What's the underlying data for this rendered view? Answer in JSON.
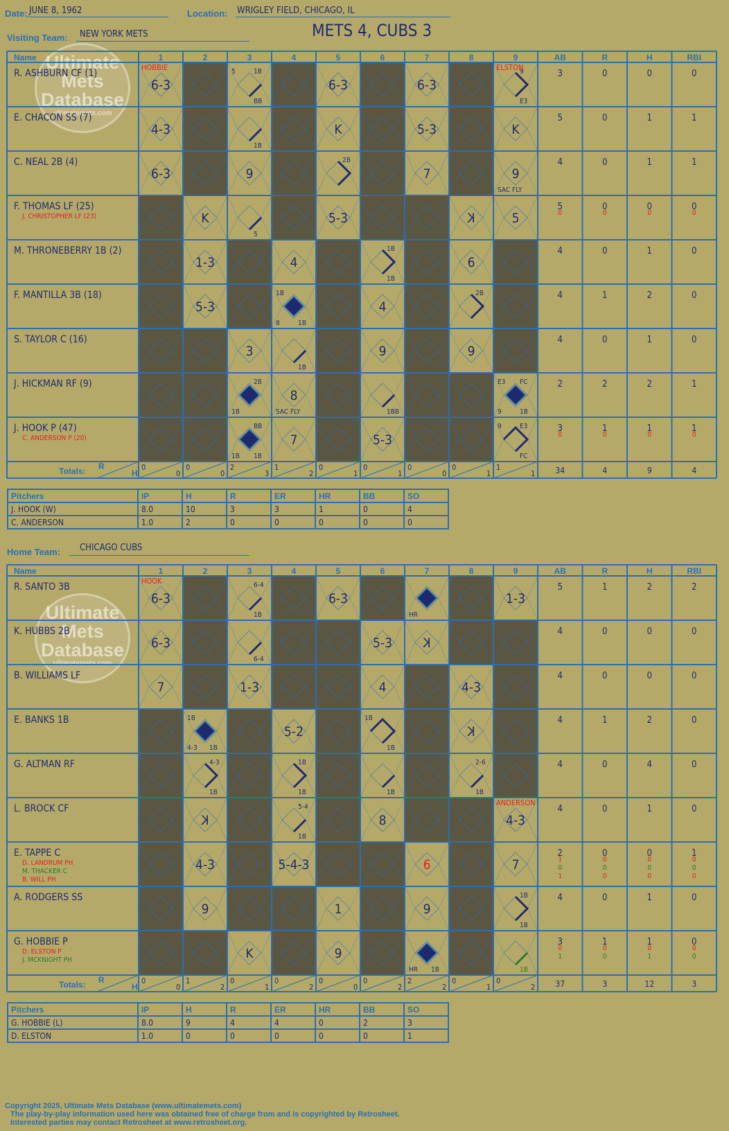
{
  "header": {
    "date_label": "Date:",
    "date": "JUNE 8, 1962",
    "location_label": "Location:",
    "location": "WRIGLEY FIELD, CHICAGO, IL",
    "visiting_label": "Visiting Team:",
    "visiting_team": "NEW YORK METS",
    "home_label": "Home Team:",
    "home_team": "CHICAGO CUBS",
    "final_score": "METS 4, CUBS 3"
  },
  "watermark": {
    "line1": "Ultimate",
    "line2": "Mets",
    "line3": "Database",
    "url": "ultimatemets.com"
  },
  "grid_labels": {
    "name": "Name",
    "innings": [
      "1",
      "2",
      "3",
      "4",
      "5",
      "6",
      "7",
      "8",
      "9"
    ],
    "stats": [
      "AB",
      "R",
      "H",
      "RBI"
    ],
    "totals": "Totals:",
    "totals_r": "R",
    "totals_h": "H"
  },
  "pitch_headers": [
    "Pitchers",
    "IP",
    "H",
    "R",
    "ER",
    "HR",
    "BB",
    "SO"
  ],
  "colors": {
    "blue": "#2a6fb0",
    "ink": "#1e2a6e",
    "red": "#e02020",
    "green": "#2a7a2a",
    "dark": "#5b5642",
    "paper": "#b5a96a"
  },
  "visitors": {
    "dark_cells": [
      [
        0,
        1,
        0,
        1,
        0,
        1,
        0,
        1,
        0
      ],
      [
        0,
        1,
        0,
        1,
        0,
        1,
        0,
        1,
        0
      ],
      [
        0,
        1,
        0,
        1,
        0,
        1,
        0,
        1,
        0
      ],
      [
        1,
        0,
        0,
        1,
        0,
        1,
        1,
        0,
        0
      ],
      [
        1,
        0,
        1,
        0,
        1,
        0,
        1,
        0,
        1
      ],
      [
        1,
        0,
        1,
        0,
        1,
        0,
        1,
        0,
        1
      ],
      [
        1,
        1,
        0,
        0,
        1,
        0,
        1,
        0,
        1
      ],
      [
        1,
        1,
        0,
        0,
        1,
        0,
        1,
        1,
        0
      ],
      [
        1,
        1,
        0,
        0,
        1,
        0,
        1,
        1,
        0
      ]
    ],
    "pitcher_notes": [
      {
        "row": 0,
        "col": 0,
        "text": "HOBBIE"
      },
      {
        "row": 0,
        "col": 8,
        "text": "ELSTON"
      }
    ],
    "players": [
      {
        "name": "R. ASHBURN CF (1)",
        "subs": [],
        "stats": [
          {
            "ab": "3",
            "r": "0",
            "h": "0",
            "rbi": "0"
          }
        ],
        "cells": [
          {
            "inn": 0,
            "center": "6-3"
          },
          {
            "inn": 2,
            "tl": "5",
            "tr": "1B",
            "br": "BB",
            "d": "1"
          },
          {
            "inn": 4,
            "center": "6-3"
          },
          {
            "inn": 6,
            "center": "6-3"
          },
          {
            "inn": 8,
            "tr": "9",
            "br": "E3",
            "d": "2"
          }
        ]
      },
      {
        "name": "E. CHACON SS (7)",
        "subs": [],
        "stats": [
          {
            "ab": "5",
            "r": "0",
            "h": "1",
            "rbi": "1"
          }
        ],
        "cells": [
          {
            "inn": 0,
            "center": "4-3"
          },
          {
            "inn": 2,
            "br": "1B",
            "d": "1"
          },
          {
            "inn": 4,
            "center": "K"
          },
          {
            "inn": 6,
            "center": "5-3"
          },
          {
            "inn": 8,
            "center": "K"
          }
        ]
      },
      {
        "name": "C. NEAL 2B (4)",
        "subs": [],
        "stats": [
          {
            "ab": "4",
            "r": "0",
            "h": "1",
            "rbi": "1"
          }
        ],
        "cells": [
          {
            "inn": 0,
            "center": "6-3"
          },
          {
            "inn": 2,
            "center": "9"
          },
          {
            "inn": 4,
            "tr": "2B",
            "d": "2"
          },
          {
            "inn": 6,
            "center": "7"
          },
          {
            "inn": 8,
            "center": "9",
            "bl": "SAC FLY"
          }
        ]
      },
      {
        "name": "F. THOMAS LF (25)",
        "subs": [
          "J. CHRISTOPHER LF (23)"
        ],
        "stats": [
          {
            "ab": "5",
            "r": "0",
            "h": "0",
            "rbi": "0"
          },
          {
            "ab": "0",
            "r": "0",
            "h": "0",
            "rbi": "0"
          }
        ],
        "cells": [
          {
            "inn": 1,
            "center": "K"
          },
          {
            "inn": 2,
            "br": "5",
            "d": "1"
          },
          {
            "inn": 4,
            "center": "5-3"
          },
          {
            "inn": 7,
            "center": "K",
            "flip": true
          },
          {
            "inn": 8,
            "center": "5"
          }
        ]
      },
      {
        "name": "M. THRONEBERRY 1B (2)",
        "subs": [],
        "stats": [
          {
            "ab": "4",
            "r": "0",
            "h": "1",
            "rbi": "0"
          }
        ],
        "cells": [
          {
            "inn": 1,
            "center": "1-3"
          },
          {
            "inn": 3,
            "center": "4"
          },
          {
            "inn": 5,
            "tr": "1B",
            "br": "1B",
            "d": "2"
          },
          {
            "inn": 7,
            "center": "6"
          }
        ]
      },
      {
        "name": "F. MANTILLA 3B (18)",
        "subs": [],
        "stats": [
          {
            "ab": "4",
            "r": "1",
            "h": "2",
            "rbi": "0"
          }
        ],
        "cells": [
          {
            "inn": 1,
            "center": "5-3"
          },
          {
            "inn": 3,
            "tl": "1B",
            "bl": "8",
            "br": "1B",
            "d": "4"
          },
          {
            "inn": 5,
            "center": "4"
          },
          {
            "inn": 7,
            "tr": "2B",
            "d": "2"
          }
        ]
      },
      {
        "name": "S. TAYLOR C (16)",
        "subs": [],
        "stats": [
          {
            "ab": "4",
            "r": "0",
            "h": "1",
            "rbi": "0"
          }
        ],
        "cells": [
          {
            "inn": 2,
            "center": "3"
          },
          {
            "inn": 3,
            "br": "1B",
            "d": "1"
          },
          {
            "inn": 5,
            "center": "9"
          },
          {
            "inn": 7,
            "center": "9"
          }
        ]
      },
      {
        "name": "J. HICKMAN RF (9)",
        "subs": [],
        "stats": [
          {
            "ab": "2",
            "r": "2",
            "h": "2",
            "rbi": "1"
          }
        ],
        "cells": [
          {
            "inn": 2,
            "tr": "2B",
            "bl": "1B",
            "d": "4"
          },
          {
            "inn": 3,
            "center": "8",
            "bl": "SAC FLY"
          },
          {
            "inn": 5,
            "br": "1BB",
            "d": "1"
          },
          {
            "inn": 8,
            "tl": "E3",
            "tr": "FC",
            "bl": "9",
            "br": "1B",
            "d": "4"
          }
        ]
      },
      {
        "name": "J. HOOK P (47)",
        "subs": [
          "C. ANDERSON P (20)"
        ],
        "stats": [
          {
            "ab": "3",
            "r": "1",
            "h": "1",
            "rbi": "1"
          },
          {
            "ab": "0",
            "r": "0",
            "h": "0",
            "rbi": "0"
          }
        ],
        "cells": [
          {
            "inn": 2,
            "tr": "BB",
            "bl": "1B",
            "br": "1B",
            "d": "4"
          },
          {
            "inn": 3,
            "center": "7"
          },
          {
            "inn": 5,
            "center": "5-3"
          },
          {
            "inn": 8,
            "tl": "9",
            "tr": "E3",
            "br": "FC",
            "d": "3"
          }
        ]
      }
    ],
    "totals": [
      [
        "0",
        "0"
      ],
      [
        "0",
        "0"
      ],
      [
        "2",
        "3"
      ],
      [
        "1",
        "2"
      ],
      [
        "0",
        "1"
      ],
      [
        "0",
        "1"
      ],
      [
        "0",
        "0"
      ],
      [
        "0",
        "1"
      ],
      [
        "1",
        "1"
      ]
    ],
    "totals_stats": {
      "ab": "34",
      "r": "4",
      "h": "9",
      "rbi": "4"
    },
    "pitchers": [
      [
        "J. HOOK (W)",
        "8.0",
        "10",
        "3",
        "3",
        "1",
        "0",
        "4"
      ],
      [
        "C. ANDERSON",
        "1.0",
        "2",
        "0",
        "0",
        "0",
        "0",
        "0"
      ]
    ]
  },
  "home": {
    "dark_cells": [
      [
        0,
        1,
        0,
        1,
        0,
        1,
        0,
        1,
        0
      ],
      [
        0,
        1,
        0,
        1,
        1,
        0,
        0,
        1,
        1
      ],
      [
        0,
        1,
        0,
        1,
        1,
        0,
        1,
        0,
        1
      ],
      [
        1,
        0,
        1,
        0,
        1,
        0,
        1,
        0,
        1
      ],
      [
        1,
        0,
        1,
        0,
        1,
        0,
        1,
        0,
        1
      ],
      [
        1,
        0,
        1,
        0,
        1,
        0,
        1,
        1,
        0
      ],
      [
        1,
        0,
        1,
        0,
        1,
        1,
        0,
        1,
        0
      ],
      [
        1,
        0,
        1,
        1,
        0,
        1,
        0,
        1,
        0
      ],
      [
        1,
        1,
        0,
        1,
        0,
        1,
        0,
        1,
        0
      ]
    ],
    "pitcher_notes": [
      {
        "row": 0,
        "col": 0,
        "text": "HOOK"
      },
      {
        "row": 5,
        "col": 8,
        "text": "ANDERSON"
      }
    ],
    "players": [
      {
        "name": "R. SANTO 3B",
        "subs": [],
        "stats": [
          {
            "ab": "5",
            "r": "1",
            "h": "2",
            "rbi": "2"
          }
        ],
        "cells": [
          {
            "inn": 0,
            "center": "6-3"
          },
          {
            "inn": 2,
            "tr": "6-4",
            "br": "1B",
            "d": "1"
          },
          {
            "inn": 4,
            "center": "6-3"
          },
          {
            "inn": 6,
            "bl": "HR",
            "d": "4"
          },
          {
            "inn": 8,
            "center": "1-3"
          }
        ]
      },
      {
        "name": "K. HUBBS 2B",
        "subs": [],
        "stats": [
          {
            "ab": "4",
            "r": "0",
            "h": "0",
            "rbi": "0"
          }
        ],
        "cells": [
          {
            "inn": 0,
            "center": "6-3"
          },
          {
            "inn": 2,
            "br": "6-4",
            "d": "1"
          },
          {
            "inn": 5,
            "center": "5-3"
          },
          {
            "inn": 6,
            "center": "K",
            "flip": true
          }
        ]
      },
      {
        "name": "B. WILLIAMS LF",
        "subs": [],
        "stats": [
          {
            "ab": "4",
            "r": "0",
            "h": "0",
            "rbi": "0"
          }
        ],
        "cells": [
          {
            "inn": 0,
            "center": "7"
          },
          {
            "inn": 2,
            "center": "1-3"
          },
          {
            "inn": 5,
            "center": "4"
          },
          {
            "inn": 7,
            "center": "4-3"
          }
        ]
      },
      {
        "name": "E. BANKS 1B",
        "subs": [],
        "stats": [
          {
            "ab": "4",
            "r": "1",
            "h": "2",
            "rbi": "0"
          }
        ],
        "cells": [
          {
            "inn": 1,
            "tl": "1B",
            "bl": "4-3",
            "br": "1B",
            "d": "4"
          },
          {
            "inn": 3,
            "center": "5-2"
          },
          {
            "inn": 5,
            "tl": "1B",
            "br": "1B",
            "d": "3"
          },
          {
            "inn": 7,
            "center": "K",
            "flip": true
          }
        ]
      },
      {
        "name": "G. ALTMAN RF",
        "subs": [],
        "stats": [
          {
            "ab": "4",
            "r": "0",
            "h": "4",
            "rbi": "0"
          }
        ],
        "cells": [
          {
            "inn": 1,
            "tr": "4-3",
            "br": "1B",
            "d": "2"
          },
          {
            "inn": 3,
            "tr": "1B",
            "br": "1B",
            "d": "2"
          },
          {
            "inn": 5,
            "br": "1B",
            "d": "1"
          },
          {
            "inn": 7,
            "tr": "2-6",
            "br": "1B",
            "d": "1"
          }
        ]
      },
      {
        "name": "L. BROCK CF",
        "subs": [],
        "stats": [
          {
            "ab": "4",
            "r": "0",
            "h": "1",
            "rbi": "0"
          }
        ],
        "cells": [
          {
            "inn": 1,
            "center": "K",
            "flip": true
          },
          {
            "inn": 3,
            "tr": "5-4",
            "br": "1B",
            "d": "1"
          },
          {
            "inn": 5,
            "center": "8"
          },
          {
            "inn": 8,
            "center": "4-3"
          }
        ]
      },
      {
        "name": "E. TAPPE C",
        "subs": [
          "D. LANDRUM PH",
          "M. THACKER C",
          "B. WILL PH"
        ],
        "stats": [
          {
            "ab": "2",
            "r": "0",
            "h": "0",
            "rbi": "1"
          },
          {
            "ab": "1",
            "r": "0",
            "h": "0",
            "rbi": "0"
          },
          {
            "ab": "0",
            "r": "0",
            "h": "0",
            "rbi": "0"
          },
          {
            "ab": "1",
            "r": "0",
            "h": "0",
            "rbi": "0"
          }
        ],
        "cells": [
          {
            "inn": 1,
            "center": "4-3"
          },
          {
            "inn": 3,
            "center": "5-4-3"
          },
          {
            "inn": 6,
            "center": "6",
            "red": true
          },
          {
            "inn": 8,
            "center": "7"
          }
        ]
      },
      {
        "name": "A. RODGERS SS",
        "subs": [],
        "stats": [
          {
            "ab": "4",
            "r": "0",
            "h": "1",
            "rbi": "0"
          }
        ],
        "cells": [
          {
            "inn": 1,
            "center": "9"
          },
          {
            "inn": 4,
            "center": "1"
          },
          {
            "inn": 6,
            "center": "9"
          },
          {
            "inn": 8,
            "tr": "1B",
            "br": "1B",
            "d": "2"
          }
        ]
      },
      {
        "name": "G. HOBBIE P",
        "subs": [
          "D. ELSTON P",
          "J. MCKNIGHT PH"
        ],
        "stats": [
          {
            "ab": "3",
            "r": "1",
            "h": "1",
            "rbi": "0"
          },
          {
            "ab": "0",
            "r": "0",
            "h": "0",
            "rbi": "0"
          },
          {
            "ab": "1",
            "r": "0",
            "h": "1",
            "rbi": "0"
          }
        ],
        "cells": [
          {
            "inn": 2,
            "center": "K"
          },
          {
            "inn": 4,
            "center": "9"
          },
          {
            "inn": 6,
            "bl": "HR",
            "br": "1B",
            "d": "4"
          },
          {
            "inn": 8,
            "br": "1B",
            "d": "1",
            "green": true
          }
        ]
      }
    ],
    "totals": [
      [
        "0",
        "0"
      ],
      [
        "1",
        "2"
      ],
      [
        "0",
        "1"
      ],
      [
        "0",
        "2"
      ],
      [
        "0",
        "0"
      ],
      [
        "0",
        "2"
      ],
      [
        "2",
        "2"
      ],
      [
        "0",
        "1"
      ],
      [
        "0",
        "2"
      ]
    ],
    "totals_stats": {
      "ab": "37",
      "r": "3",
      "h": "12",
      "rbi": "3"
    },
    "pitchers": [
      [
        "G. HOBBIE (L)",
        "8.0",
        "9",
        "4",
        "4",
        "0",
        "2",
        "3"
      ],
      [
        "D. ELSTON",
        "1.0",
        "0",
        "0",
        "0",
        "0",
        "0",
        "1"
      ]
    ]
  },
  "footer": {
    "copyright": "Copyright 2025, Ultimate Mets Database (www.ultimatemets.com)",
    "line2": "The play-by-play information used here was obtained free of charge from and is copyrighted by Retrosheet.",
    "line3": "Interested parties may contact Retrosheet at www.retrosheet.org."
  }
}
